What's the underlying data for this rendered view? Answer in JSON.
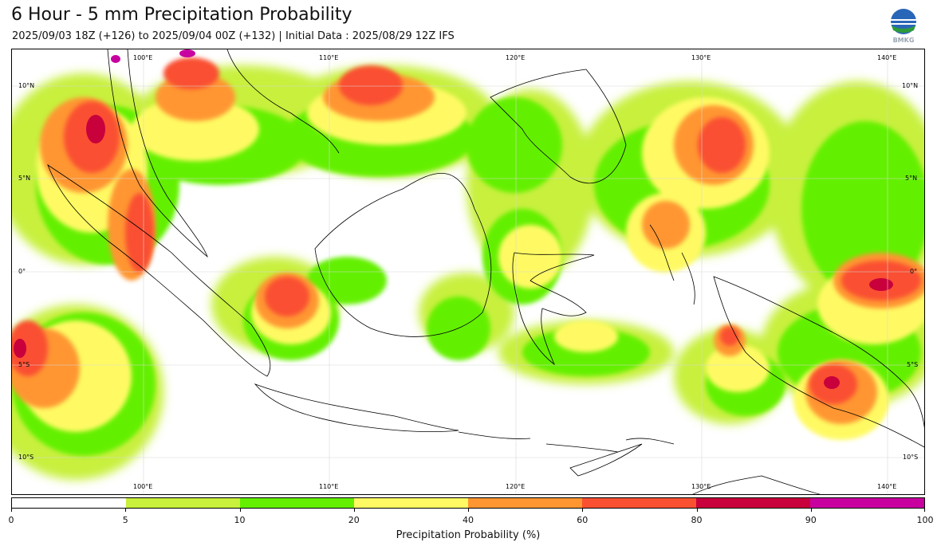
{
  "header": {
    "title": "6 Hour - 5 mm Precipitation Probability",
    "subtitle": "2025/09/03 18Z (+126) to 2025/09/04 00Z (+132) | Initial Data : 2025/08/29 12Z IFS",
    "logo_text": "BMKG"
  },
  "map": {
    "lon_labels": [
      "100°E",
      "110°E",
      "120°E",
      "130°E",
      "140°E"
    ],
    "lat_labels_left": [
      "10°N",
      "5°N",
      "0°",
      "5°S",
      "10°S"
    ],
    "lat_labels_right": [
      "10°N",
      "5°N",
      "0°",
      "5°S",
      "10°S"
    ]
  },
  "colorbar": {
    "label": "Precipitation Probability (%)",
    "ticks": [
      "0",
      "5",
      "10",
      "20",
      "40",
      "60",
      "80",
      "90",
      "100"
    ],
    "colors": [
      "#ffffff",
      "#c8f03c",
      "#64f000",
      "#fffa64",
      "#ff9632",
      "#fa5032",
      "#c8003c",
      "#c800a0"
    ]
  }
}
